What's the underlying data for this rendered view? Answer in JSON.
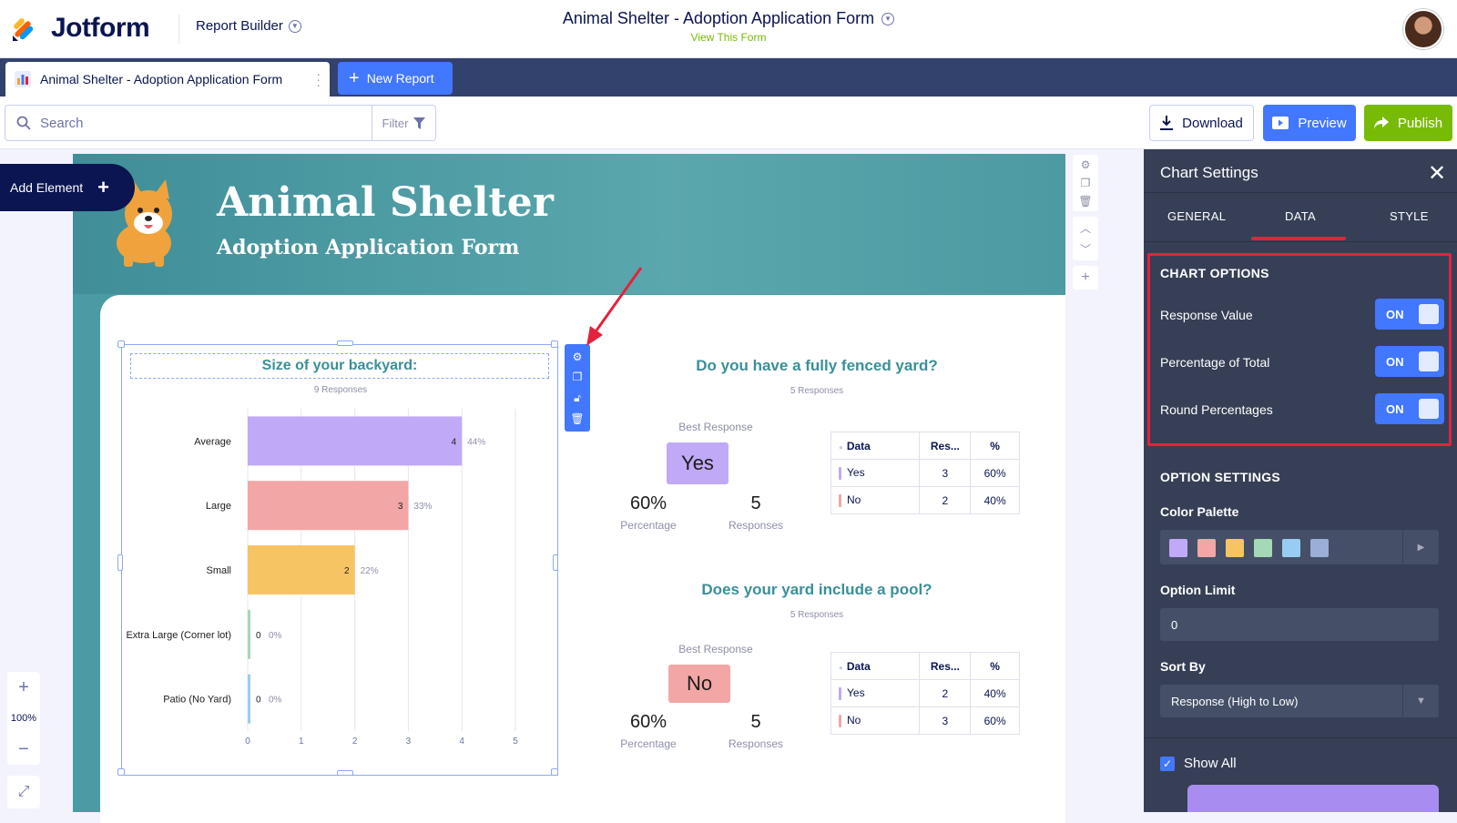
{
  "app": {
    "brand": "Jotform",
    "mode_label": "Report Builder",
    "form_title": "Animal Shelter - Adoption Application Form",
    "view_form_link": "View This Form"
  },
  "tabs": {
    "active_label": "Animal Shelter - Adoption Application Form",
    "new_label": "New Report"
  },
  "toolbar": {
    "search_placeholder": "Search",
    "filter_label": "Filter",
    "download_label": "Download",
    "preview_label": "Preview",
    "publish_label": "Publish"
  },
  "canvas": {
    "add_element_label": "Add Element",
    "zoom_level": "100%"
  },
  "report": {
    "title": "Animal Shelter",
    "subtitle": "Adoption Application Form"
  },
  "chart_data": {
    "type": "bar",
    "orientation": "horizontal",
    "title": "Size of your backyard:",
    "subtitle": "9 Responses",
    "categories": [
      "Average",
      "Large",
      "Small",
      "Extra Large (Corner lot)",
      "Patio (No Yard)"
    ],
    "values": [
      4,
      3,
      2,
      0,
      0
    ],
    "percent_labels": [
      "44%",
      "33%",
      "22%",
      "0%",
      "0%"
    ],
    "colors": [
      "#c0a9f7",
      "#f2a6a6",
      "#f7c464",
      "#a3d9b4",
      "#97cdf3"
    ],
    "x_ticks": [
      "0",
      "1",
      "2",
      "3",
      "4",
      "5"
    ],
    "xlim": [
      0,
      5
    ],
    "grid": true
  },
  "questions": [
    {
      "title": "Do you have a fully fenced yard?",
      "responses_label": "5 Responses",
      "best_response_label": "Best Response",
      "best_response": "Yes",
      "best_color": "#c0a9f7",
      "percentage": "60%",
      "percentage_label": "Percentage",
      "responses": "5",
      "responses_caption": "Responses",
      "table_headers": [
        "Data",
        "Res...",
        "%"
      ],
      "rows": [
        {
          "label": "Yes",
          "count": "3",
          "pct": "60%",
          "color": "#c0a9f7"
        },
        {
          "label": "No",
          "count": "2",
          "pct": "40%",
          "color": "#f2a6a6"
        }
      ]
    },
    {
      "title": "Does your yard include a pool?",
      "responses_label": "5 Responses",
      "best_response_label": "Best Response",
      "best_response": "No",
      "best_color": "#f2a6a6",
      "percentage": "60%",
      "percentage_label": "Percentage",
      "responses": "5",
      "responses_caption": "Responses",
      "table_headers": [
        "Data",
        "Res...",
        "%"
      ],
      "rows": [
        {
          "label": "Yes",
          "count": "2",
          "pct": "40%",
          "color": "#c0a9f7"
        },
        {
          "label": "No",
          "count": "3",
          "pct": "60%",
          "color": "#f2a6a6"
        }
      ]
    }
  ],
  "panel": {
    "title": "Chart Settings",
    "tabs": [
      "GENERAL",
      "DATA",
      "STYLE"
    ],
    "active_tab": "DATA",
    "chart_options_title": "CHART OPTIONS",
    "options": [
      {
        "label": "Response Value",
        "state": "ON"
      },
      {
        "label": "Percentage of Total",
        "state": "ON"
      },
      {
        "label": "Round Percentages",
        "state": "ON"
      }
    ],
    "option_settings_title": "OPTION SETTINGS",
    "color_palette_label": "Color Palette",
    "palette": [
      "#c0a9f7",
      "#f2a6a6",
      "#f7c464",
      "#a3d9b4",
      "#97cdf3",
      "#9aaed6"
    ],
    "option_limit_label": "Option Limit",
    "option_limit_value": "0",
    "sort_by_label": "Sort By",
    "sort_by_value": "Response (High to Low)",
    "show_all_label": "Show All"
  },
  "colors": {
    "accent_blue": "#4277ff",
    "publish_green": "#78bb07",
    "highlight_red": "#e3233c",
    "teal_title": "#3b8f98"
  }
}
